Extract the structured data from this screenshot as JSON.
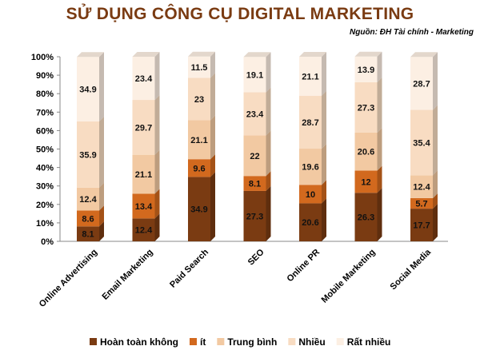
{
  "chart_data": {
    "type": "bar",
    "stacked": true,
    "title": "SỬ DỤNG CÔNG CỤ DIGITAL MARKETING",
    "source": "Nguồn: ĐH Tài chính - Marketing",
    "categories": [
      "Online Advertising",
      "Email Marketing",
      "Paid Search",
      "SEO",
      "Online PR",
      "Mobile Marketing",
      "Social Media"
    ],
    "series": [
      {
        "name": "Hoàn toàn không",
        "color": "#7a3b12",
        "values": [
          8.1,
          12.4,
          34.9,
          27.3,
          20.6,
          26.3,
          17.7
        ]
      },
      {
        "name": "ít",
        "color": "#d2691e",
        "values": [
          8.6,
          13.4,
          9.6,
          8.1,
          10,
          12,
          5.7
        ]
      },
      {
        "name": "Trung bình",
        "color": "#f2c9a2",
        "values": [
          12.4,
          21.1,
          21.1,
          22,
          19.6,
          20.6,
          12.4
        ]
      },
      {
        "name": "Nhiều",
        "color": "#f8dcc2",
        "values": [
          35.9,
          29.7,
          23,
          23.4,
          28.7,
          27.3,
          35.4
        ]
      },
      {
        "name": "Rất nhiều",
        "color": "#fcefe3",
        "values": [
          34.9,
          23.4,
          11.5,
          19.1,
          21.1,
          13.9,
          28.7
        ]
      }
    ],
    "yticks": [
      "0%",
      "10%",
      "20%",
      "30%",
      "40%",
      "50%",
      "60%",
      "70%",
      "80%",
      "90%",
      "100%"
    ],
    "ylim": [
      0,
      100
    ],
    "grid": false,
    "legend_position": "bottom"
  }
}
